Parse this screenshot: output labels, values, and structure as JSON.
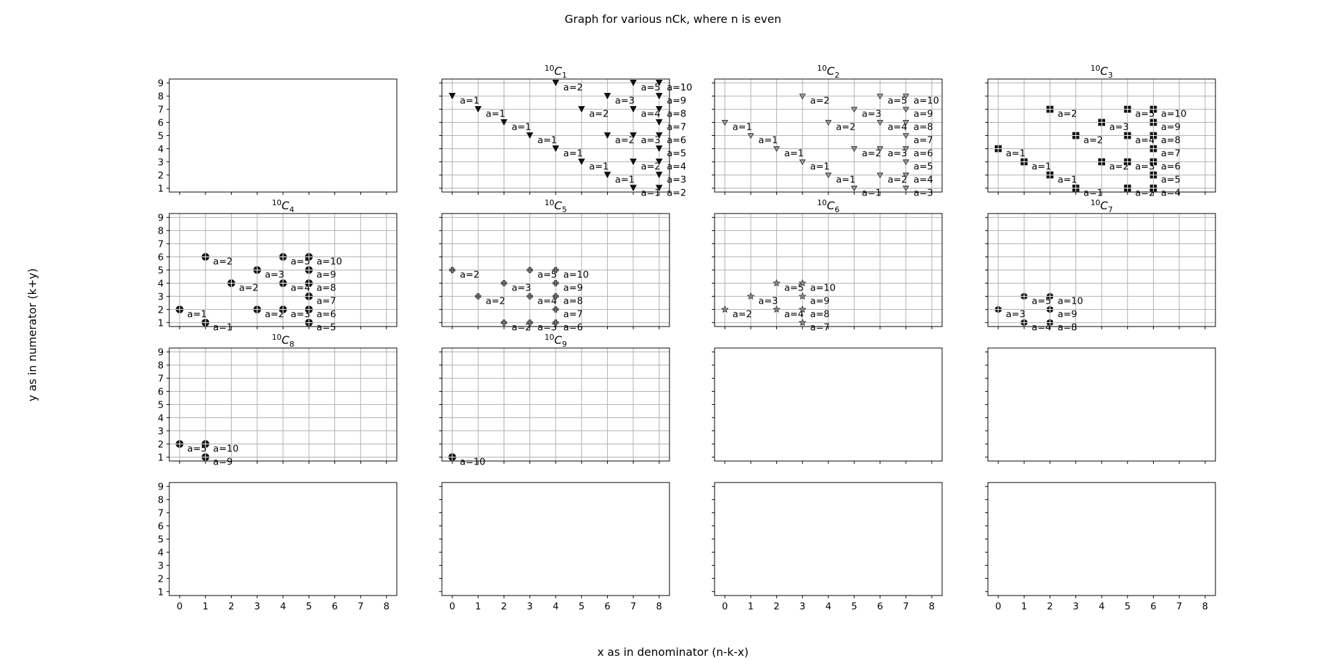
{
  "figure": {
    "suptitle": "Graph for various nCk, where n is even",
    "xlabel": "x as in denominator (n-k-x)",
    "ylabel": "y as in numerator (k+y)"
  },
  "chart_data": {
    "type": "scatter",
    "n": 10,
    "xlim": [
      -0.4,
      8.4
    ],
    "ylim": [
      0.7,
      9.3
    ],
    "xticks": [
      0,
      1,
      2,
      3,
      4,
      5,
      6,
      7,
      8
    ],
    "yticks": [
      1,
      2,
      3,
      4,
      5,
      6,
      7,
      8,
      9
    ],
    "grid": true,
    "grid_rows": 4,
    "grid_cols": 4,
    "panels": [
      {
        "k": null,
        "points": []
      },
      {
        "k": 1,
        "marker": "triangle-down",
        "points": [
          {
            "x": 0,
            "y": 8,
            "label": "a=1"
          },
          {
            "x": 1,
            "y": 7,
            "label": "a=1"
          },
          {
            "x": 2,
            "y": 6,
            "label": "a=1"
          },
          {
            "x": 3,
            "y": 5,
            "label": "a=1"
          },
          {
            "x": 4,
            "y": 4,
            "label": "a=1"
          },
          {
            "x": 5,
            "y": 3,
            "label": "a=1"
          },
          {
            "x": 6,
            "y": 2,
            "label": "a=1"
          },
          {
            "x": 7,
            "y": 1,
            "label": "a=1"
          },
          {
            "x": 4,
            "y": 9,
            "label": "a=2"
          },
          {
            "x": 5,
            "y": 7,
            "label": "a=2"
          },
          {
            "x": 6,
            "y": 5,
            "label": "a=2"
          },
          {
            "x": 7,
            "y": 3,
            "label": "a=2"
          },
          {
            "x": 8,
            "y": 1,
            "label": "a=2"
          },
          {
            "x": 6,
            "y": 8,
            "label": "a=3"
          },
          {
            "x": 7,
            "y": 5,
            "label": "a=3"
          },
          {
            "x": 8,
            "y": 2,
            "label": "a=3"
          },
          {
            "x": 7,
            "y": 7,
            "label": "a=4"
          },
          {
            "x": 8,
            "y": 3,
            "label": "a=4"
          },
          {
            "x": 7,
            "y": 9,
            "label": "a=5"
          },
          {
            "x": 8,
            "y": 4,
            "label": "a=5"
          },
          {
            "x": 8,
            "y": 5,
            "label": "a=6"
          },
          {
            "x": 8,
            "y": 6,
            "label": "a=7"
          },
          {
            "x": 8,
            "y": 7,
            "label": "a=8"
          },
          {
            "x": 8,
            "y": 8,
            "label": "a=9"
          },
          {
            "x": 8,
            "y": 9,
            "label": "a=10"
          }
        ]
      },
      {
        "k": 2,
        "marker": "tri-down",
        "points": [
          {
            "x": 0,
            "y": 6,
            "label": "a=1"
          },
          {
            "x": 1,
            "y": 5,
            "label": "a=1"
          },
          {
            "x": 2,
            "y": 4,
            "label": "a=1"
          },
          {
            "x": 3,
            "y": 3,
            "label": "a=1"
          },
          {
            "x": 4,
            "y": 2,
            "label": "a=1"
          },
          {
            "x": 5,
            "y": 1,
            "label": "a=1"
          },
          {
            "x": 3,
            "y": 8,
            "label": "a=2"
          },
          {
            "x": 4,
            "y": 6,
            "label": "a=2"
          },
          {
            "x": 5,
            "y": 4,
            "label": "a=2"
          },
          {
            "x": 6,
            "y": 2,
            "label": "a=2"
          },
          {
            "x": 5,
            "y": 7,
            "label": "a=3"
          },
          {
            "x": 6,
            "y": 4,
            "label": "a=3"
          },
          {
            "x": 7,
            "y": 1,
            "label": "a=3"
          },
          {
            "x": 6,
            "y": 6,
            "label": "a=4"
          },
          {
            "x": 7,
            "y": 2,
            "label": "a=4"
          },
          {
            "x": 6,
            "y": 8,
            "label": "a=5"
          },
          {
            "x": 7,
            "y": 3,
            "label": "a=5"
          },
          {
            "x": 7,
            "y": 4,
            "label": "a=6"
          },
          {
            "x": 7,
            "y": 5,
            "label": "a=7"
          },
          {
            "x": 7,
            "y": 6,
            "label": "a=8"
          },
          {
            "x": 7,
            "y": 7,
            "label": "a=9"
          },
          {
            "x": 7,
            "y": 8,
            "label": "a=10"
          }
        ]
      },
      {
        "k": 3,
        "marker": "square",
        "points": [
          {
            "x": 0,
            "y": 4,
            "label": "a=1"
          },
          {
            "x": 1,
            "y": 3,
            "label": "a=1"
          },
          {
            "x": 2,
            "y": 2,
            "label": "a=1"
          },
          {
            "x": 3,
            "y": 1,
            "label": "a=1"
          },
          {
            "x": 2,
            "y": 7,
            "label": "a=2"
          },
          {
            "x": 3,
            "y": 5,
            "label": "a=2"
          },
          {
            "x": 4,
            "y": 3,
            "label": "a=2"
          },
          {
            "x": 5,
            "y": 1,
            "label": "a=2"
          },
          {
            "x": 4,
            "y": 6,
            "label": "a=3"
          },
          {
            "x": 5,
            "y": 3,
            "label": "a=3"
          },
          {
            "x": 5,
            "y": 5,
            "label": "a=4"
          },
          {
            "x": 6,
            "y": 1,
            "label": "a=4"
          },
          {
            "x": 5,
            "y": 7,
            "label": "a=5"
          },
          {
            "x": 6,
            "y": 2,
            "label": "a=5"
          },
          {
            "x": 6,
            "y": 3,
            "label": "a=6"
          },
          {
            "x": 6,
            "y": 4,
            "label": "a=7"
          },
          {
            "x": 6,
            "y": 5,
            "label": "a=8"
          },
          {
            "x": 6,
            "y": 6,
            "label": "a=9"
          },
          {
            "x": 6,
            "y": 7,
            "label": "a=10"
          }
        ]
      },
      {
        "k": 4,
        "marker": "octagon",
        "points": [
          {
            "x": 0,
            "y": 2,
            "label": "a=1"
          },
          {
            "x": 1,
            "y": 1,
            "label": "a=1"
          },
          {
            "x": 1,
            "y": 6,
            "label": "a=2"
          },
          {
            "x": 2,
            "y": 4,
            "label": "a=2"
          },
          {
            "x": 3,
            "y": 2,
            "label": "a=2"
          },
          {
            "x": 3,
            "y": 5,
            "label": "a=3"
          },
          {
            "x": 4,
            "y": 2,
            "label": "a=3"
          },
          {
            "x": 4,
            "y": 4,
            "label": "a=4"
          },
          {
            "x": 4,
            "y": 6,
            "label": "a=5"
          },
          {
            "x": 5,
            "y": 1,
            "label": "a=5"
          },
          {
            "x": 5,
            "y": 2,
            "label": "a=6"
          },
          {
            "x": 5,
            "y": 3,
            "label": "a=7"
          },
          {
            "x": 5,
            "y": 4,
            "label": "a=8"
          },
          {
            "x": 5,
            "y": 5,
            "label": "a=9"
          },
          {
            "x": 5,
            "y": 6,
            "label": "a=10"
          }
        ]
      },
      {
        "k": 5,
        "marker": "plus",
        "points": [
          {
            "x": 0,
            "y": 5,
            "label": "a=2"
          },
          {
            "x": 1,
            "y": 3,
            "label": "a=2"
          },
          {
            "x": 2,
            "y": 1,
            "label": "a=2"
          },
          {
            "x": 2,
            "y": 4,
            "label": "a=3"
          },
          {
            "x": 3,
            "y": 1,
            "label": "a=3"
          },
          {
            "x": 3,
            "y": 3,
            "label": "a=4"
          },
          {
            "x": 3,
            "y": 5,
            "label": "a=5"
          },
          {
            "x": 4,
            "y": 1,
            "label": "a=6"
          },
          {
            "x": 4,
            "y": 2,
            "label": "a=7"
          },
          {
            "x": 4,
            "y": 3,
            "label": "a=8"
          },
          {
            "x": 4,
            "y": 4,
            "label": "a=9"
          },
          {
            "x": 4,
            "y": 5,
            "label": "a=10"
          }
        ]
      },
      {
        "k": 6,
        "marker": "star",
        "points": [
          {
            "x": 0,
            "y": 2,
            "label": "a=2"
          },
          {
            "x": 1,
            "y": 3,
            "label": "a=3"
          },
          {
            "x": 2,
            "y": 2,
            "label": "a=4"
          },
          {
            "x": 2,
            "y": 4,
            "label": "a=5"
          },
          {
            "x": 3,
            "y": 1,
            "label": "a=7"
          },
          {
            "x": 3,
            "y": 2,
            "label": "a=8"
          },
          {
            "x": 3,
            "y": 3,
            "label": "a=9"
          },
          {
            "x": 3,
            "y": 4,
            "label": "a=10"
          }
        ]
      },
      {
        "k": 7,
        "marker": "hexagon",
        "points": [
          {
            "x": 0,
            "y": 2,
            "label": "a=3"
          },
          {
            "x": 1,
            "y": 1,
            "label": "a=4"
          },
          {
            "x": 1,
            "y": 3,
            "label": "a=5"
          },
          {
            "x": 2,
            "y": 1,
            "label": "a=8"
          },
          {
            "x": 2,
            "y": 2,
            "label": "a=9"
          },
          {
            "x": 2,
            "y": 3,
            "label": "a=10"
          }
        ]
      },
      {
        "k": 8,
        "marker": "octagon",
        "points": [
          {
            "x": 0,
            "y": 2,
            "label": "a=5"
          },
          {
            "x": 1,
            "y": 1,
            "label": "a=9"
          },
          {
            "x": 1,
            "y": 2,
            "label": "a=10"
          }
        ]
      },
      {
        "k": 9,
        "marker": "octagon",
        "points": [
          {
            "x": 0,
            "y": 1,
            "label": "a=10"
          }
        ]
      },
      {
        "k": null,
        "points": []
      },
      {
        "k": null,
        "points": []
      },
      {
        "k": null,
        "points": []
      },
      {
        "k": null,
        "points": []
      },
      {
        "k": null,
        "points": []
      },
      {
        "k": null,
        "points": []
      }
    ]
  }
}
